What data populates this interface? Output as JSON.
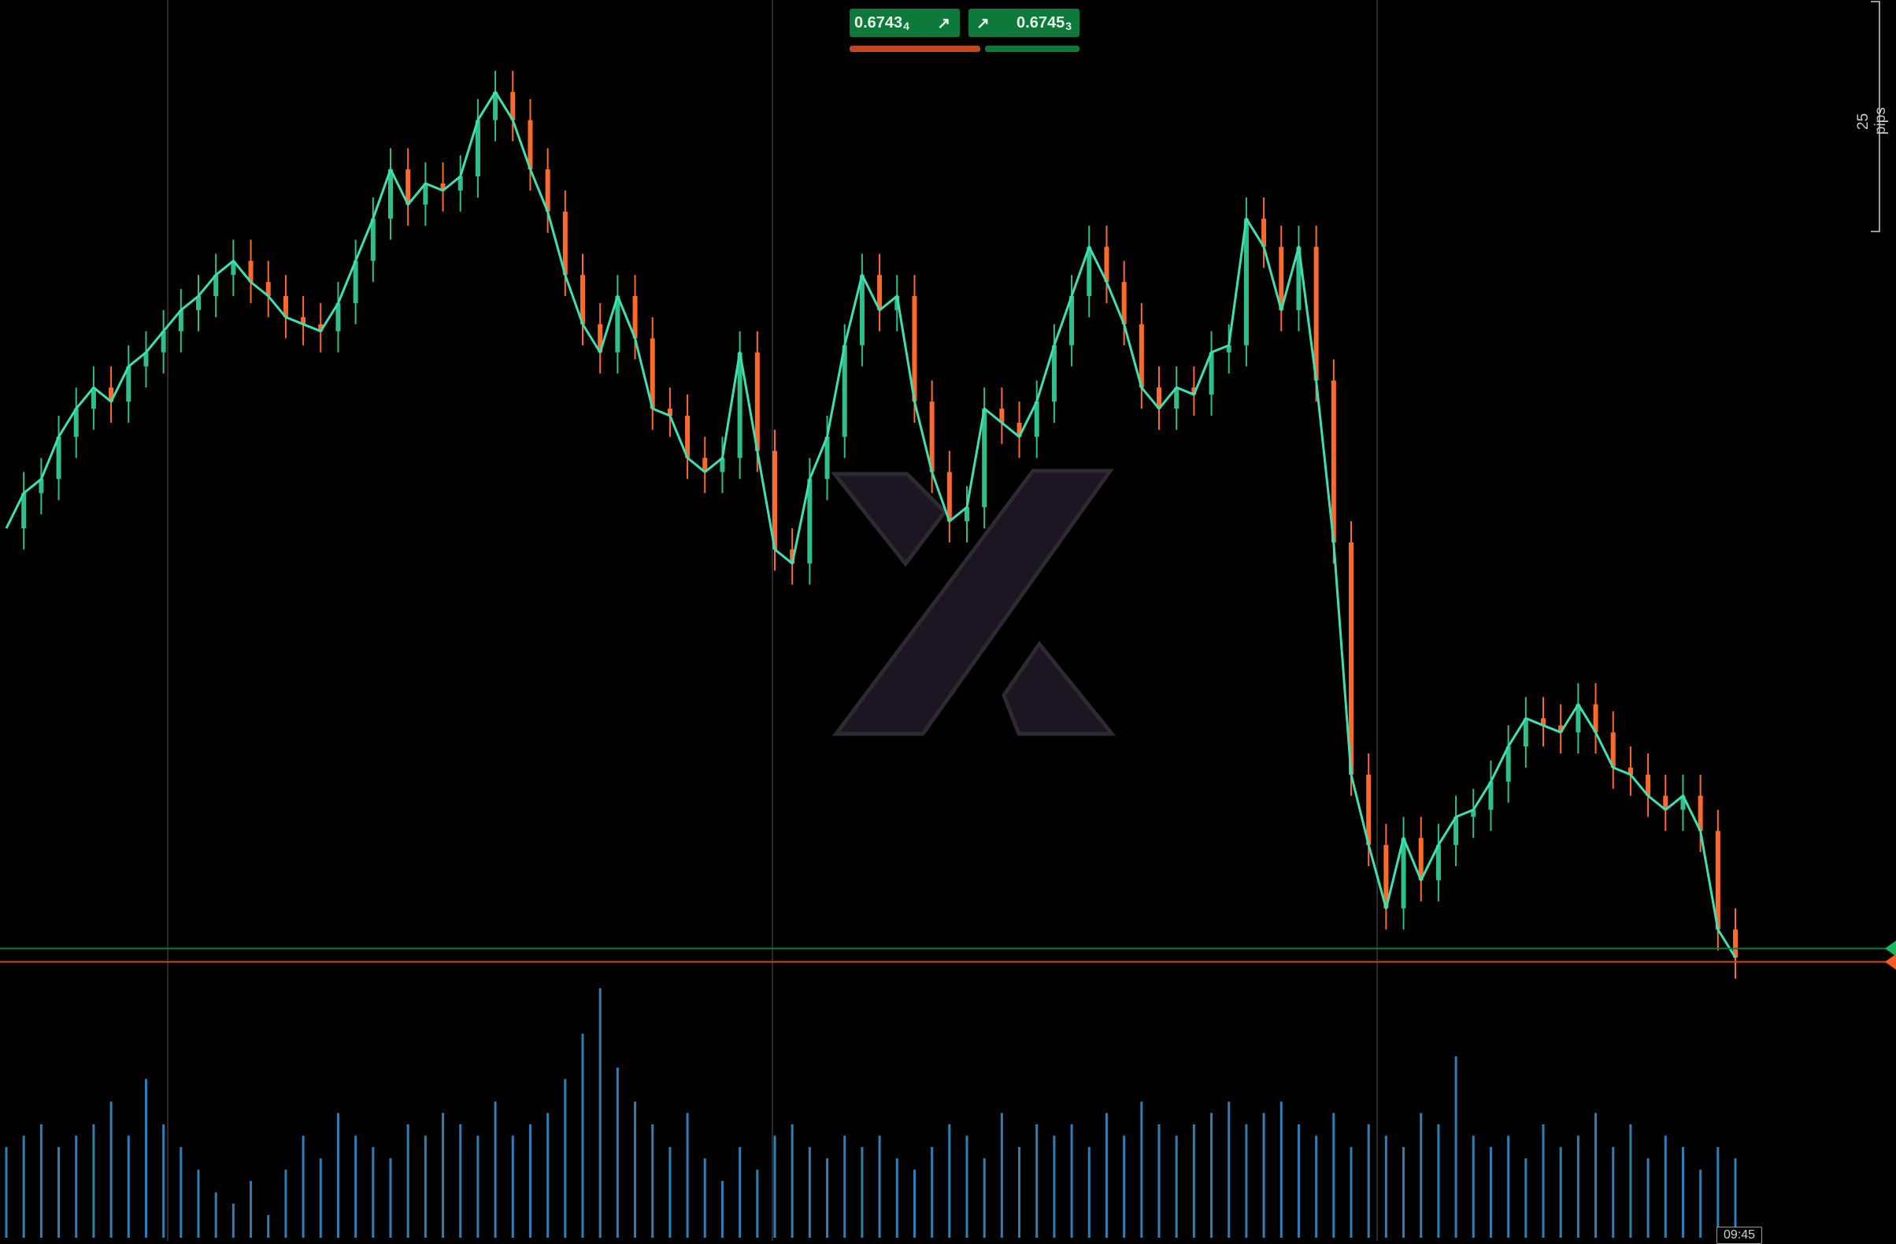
{
  "quote": {
    "bid": {
      "main": "0.6743",
      "small": "4",
      "arrow_icon": "arrow-up-right-icon"
    },
    "ask": {
      "main": "0.6745",
      "small": "3",
      "arrow_icon": "arrow-up-right-icon"
    }
  },
  "scale_label": "25 pips",
  "time_label": "09:45",
  "colors": {
    "background": "#000000",
    "line": "#3ee0b3",
    "bull_candle": "#2fbf8a",
    "bear_candle": "#ff6a2a",
    "volume": "#2f7fb5",
    "ask_line": "#0d7a3c",
    "bid_line": "#d0451b",
    "grid": "#2a2a2a",
    "watermark": "#1b1621"
  },
  "chart_data": {
    "type": "line",
    "series": [
      {
        "values": [
          0.6805,
          0.681,
          0.6812,
          0.6818,
          0.6822,
          0.6825,
          0.6823,
          0.6828,
          0.683,
          0.6833,
          0.6836,
          0.6838,
          0.6841,
          0.6843,
          0.684,
          0.6838,
          0.6835,
          0.6834,
          0.6833,
          0.6837,
          0.6843,
          0.6849,
          0.6856,
          0.6851,
          0.6854,
          0.6853,
          0.6855,
          0.6863,
          0.6867,
          0.6863,
          0.6856,
          0.685,
          0.6841,
          0.6834,
          0.683,
          0.6838,
          0.6832,
          0.6822,
          0.6821,
          0.6815,
          0.6813,
          0.6815,
          0.683,
          0.6816,
          0.6802,
          0.68,
          0.6812,
          0.6818,
          0.6831,
          0.6841,
          0.6836,
          0.6838,
          0.6823,
          0.6813,
          0.6806,
          0.6808,
          0.6822,
          0.682,
          0.6818,
          0.6823,
          0.6831,
          0.6838,
          0.6845,
          0.684,
          0.6834,
          0.6825,
          0.6822,
          0.6825,
          0.6824,
          0.683,
          0.6831,
          0.6849,
          0.6845,
          0.6836,
          0.6845,
          0.6826,
          0.6803,
          0.677,
          0.676,
          0.6751,
          0.6761,
          0.6755,
          0.676,
          0.6764,
          0.6765,
          0.6769,
          0.6774,
          0.6778,
          0.6777,
          0.6776,
          0.678,
          0.6776,
          0.6771,
          0.677,
          0.6767,
          0.6765,
          0.6767,
          0.6762,
          0.6748,
          0.6744
        ]
      }
    ],
    "volume": [
      8,
      9,
      10,
      8,
      9,
      10,
      12,
      9,
      14,
      10,
      8,
      6,
      4,
      3,
      5,
      2,
      6,
      9,
      7,
      11,
      9,
      8,
      7,
      10,
      9,
      11,
      10,
      9,
      12,
      9,
      10,
      11,
      14,
      18,
      22,
      15,
      12,
      10,
      8,
      11,
      7,
      5,
      8,
      6,
      9,
      10,
      8,
      7,
      9,
      8,
      9,
      7,
      6,
      8,
      10,
      9,
      7,
      11,
      8,
      10,
      9,
      10,
      8,
      11,
      9,
      12,
      10,
      9,
      10,
      11,
      12,
      10,
      11,
      12,
      10,
      9,
      11,
      8,
      10,
      9,
      8,
      11,
      10,
      16,
      9,
      8,
      9,
      7,
      10,
      8,
      9,
      11,
      8,
      10,
      7,
      9,
      8,
      6,
      8,
      7
    ],
    "ask_price": 0.67453,
    "bid_price": 0.67434,
    "grid": true
  }
}
